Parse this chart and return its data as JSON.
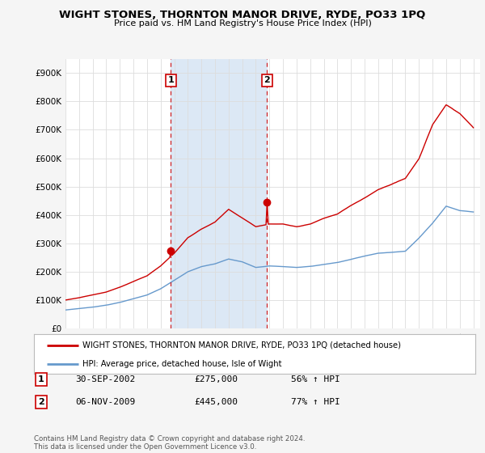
{
  "title": "WIGHT STONES, THORNTON MANOR DRIVE, RYDE, PO33 1PQ",
  "subtitle": "Price paid vs. HM Land Registry's House Price Index (HPI)",
  "ylabel_ticks": [
    "£0",
    "£100K",
    "£200K",
    "£300K",
    "£400K",
    "£500K",
    "£600K",
    "£700K",
    "£800K",
    "£900K"
  ],
  "ytick_values": [
    0,
    100000,
    200000,
    300000,
    400000,
    500000,
    600000,
    700000,
    800000,
    900000
  ],
  "ylim": [
    0,
    950000
  ],
  "xlim_start": 1995.0,
  "xlim_end": 2025.5,
  "background_color": "#f5f5f5",
  "plot_bg_color": "#ffffff",
  "grid_color": "#dddddd",
  "hpi_color": "#6699cc",
  "price_color": "#cc0000",
  "shade_color": "#dce8f5",
  "marker1_x": 2002.75,
  "marker1_y": 275000,
  "marker2_x": 2009.83,
  "marker2_y": 445000,
  "sale1_label": "1",
  "sale2_label": "2",
  "sale1_date": "30-SEP-2002",
  "sale1_price": "£275,000",
  "sale1_hpi": "56% ↑ HPI",
  "sale2_date": "06-NOV-2009",
  "sale2_price": "£445,000",
  "sale2_hpi": "77% ↑ HPI",
  "legend1": "WIGHT STONES, THORNTON MANOR DRIVE, RYDE, PO33 1PQ (detached house)",
  "legend2": "HPI: Average price, detached house, Isle of Wight",
  "footer": "Contains HM Land Registry data © Crown copyright and database right 2024.\nThis data is licensed under the Open Government Licence v3.0."
}
